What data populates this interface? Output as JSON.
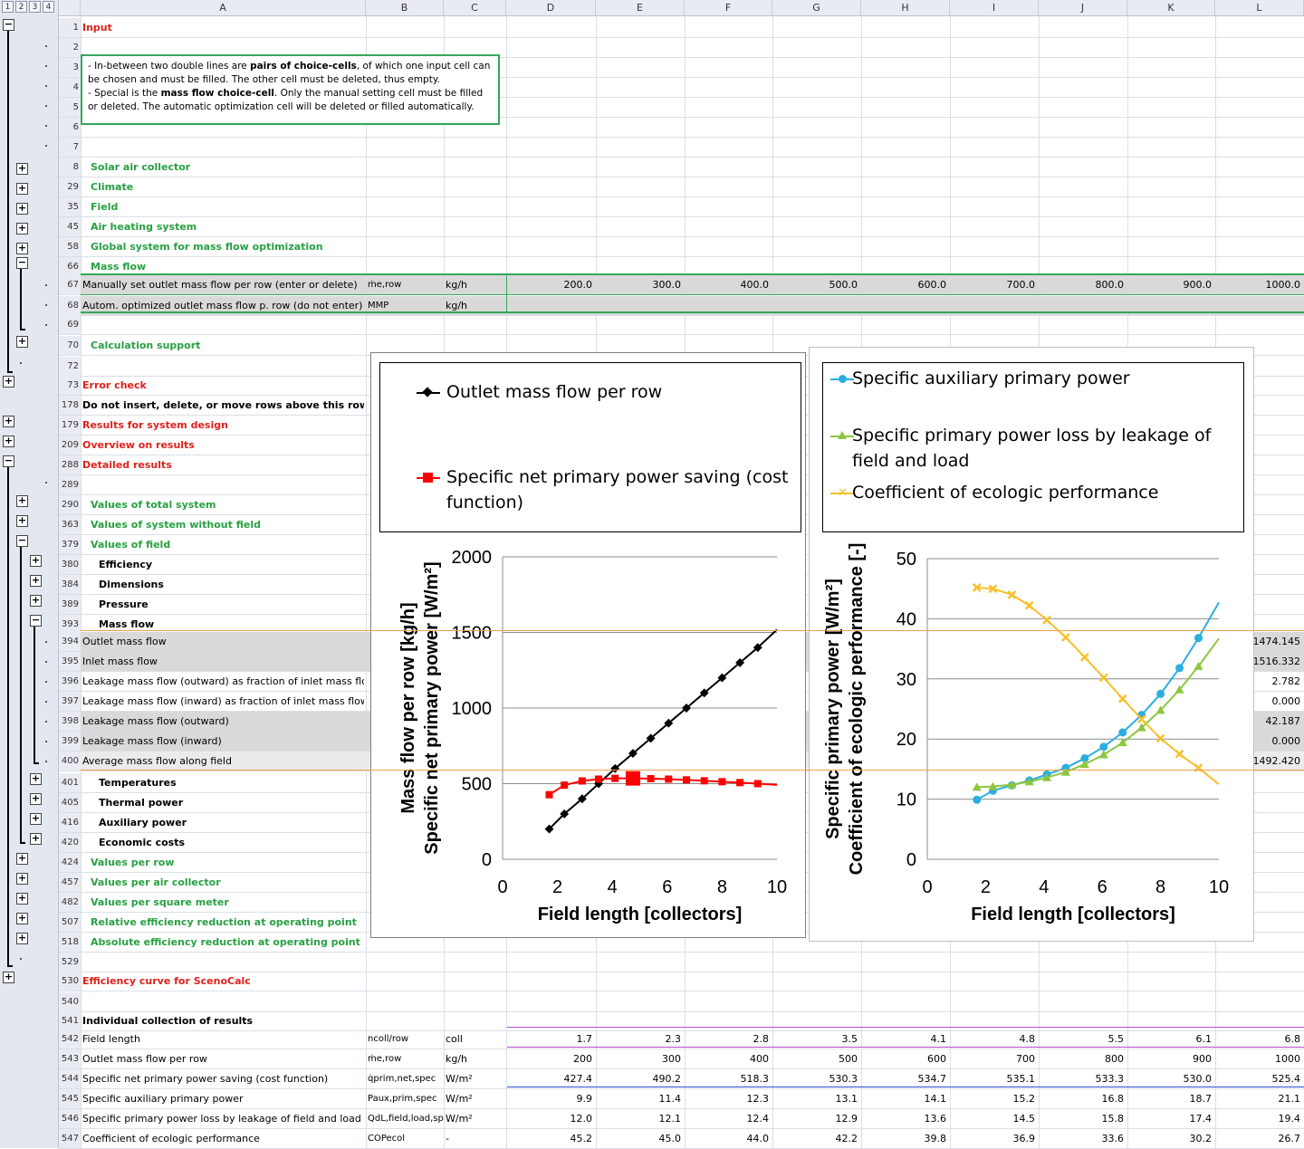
{
  "outline_levels": [
    "1",
    "2",
    "3",
    "4"
  ],
  "columns": [
    "A",
    "B",
    "C",
    "D",
    "E",
    "F",
    "G",
    "H",
    "I",
    "J",
    "K",
    "L"
  ],
  "note": {
    "l1a": "- In-between two double lines are ",
    "l1b": "pairs of choice-cells",
    "l1c": ", of which one input cell can be chosen and must be filled. The other cell must be deleted, thus empty.",
    "l2a": "- Special is the ",
    "l2b": "mass flow choice-cell",
    "l2c": ". Only the manual setting cell must be filled or deleted. The automatic optimization cell will be deleted or filled automatically."
  },
  "rows": {
    "r1": {
      "num": "1",
      "a": "Input"
    },
    "r2": {
      "num": "2"
    },
    "r3": {
      "num": "3"
    },
    "r4": {
      "num": "4"
    },
    "r5": {
      "num": "5"
    },
    "r6": {
      "num": "6"
    },
    "r7": {
      "num": "7"
    },
    "r8": {
      "num": "8",
      "a": "Solar air collector"
    },
    "r29": {
      "num": "29",
      "a": "Climate"
    },
    "r35": {
      "num": "35",
      "a": "Field"
    },
    "r45": {
      "num": "45",
      "a": "Air heating system"
    },
    "r58": {
      "num": "58",
      "a": "Global system for mass flow optimization"
    },
    "r66": {
      "num": "66",
      "a": "Mass flow"
    },
    "r67": {
      "num": "67",
      "a": "Manually set outlet mass flow per row (enter or delete)",
      "b": "ṁe,row",
      "c": "kg/h",
      "vals": [
        "200.0",
        "300.0",
        "400.0",
        "500.0",
        "600.0",
        "700.0",
        "800.0",
        "900.0",
        "1000.0"
      ]
    },
    "r68": {
      "num": "68",
      "a": "Autom. optimized outlet mass flow p. row (do not enter)",
      "b": "MMP",
      "c": "kg/h"
    },
    "r69": {
      "num": "69"
    },
    "r70": {
      "num": "70",
      "a": "Calculation support"
    },
    "r72": {
      "num": "72"
    },
    "r73": {
      "num": "73",
      "a": "Error check"
    },
    "r178": {
      "num": "178",
      "a": "Do not insert, delete, or move rows above this row!"
    },
    "r179": {
      "num": "179",
      "a": "Results for system design"
    },
    "r209": {
      "num": "209",
      "a": "Overview on results"
    },
    "r288": {
      "num": "288",
      "a": "Detailed results"
    },
    "r289": {
      "num": "289"
    },
    "r290": {
      "num": "290",
      "a": "Values of total system"
    },
    "r363": {
      "num": "363",
      "a": "Values of system without field"
    },
    "r379": {
      "num": "379",
      "a": "Values of field"
    },
    "r380": {
      "num": "380",
      "a": "Efficiency"
    },
    "r384": {
      "num": "384",
      "a": "Dimensions"
    },
    "r389": {
      "num": "389",
      "a": "Pressure"
    },
    "r393": {
      "num": "393",
      "a": "Mass flow"
    },
    "r394": {
      "num": "394",
      "a": "Outlet mass flow",
      "l": "1474.145"
    },
    "r395": {
      "num": "395",
      "a": "Inlet mass flow",
      "l": "1516.332"
    },
    "r396": {
      "num": "396",
      "a": "Leakage mass flow (outward) as fraction of inlet mass flow",
      "l": "2.782"
    },
    "r397": {
      "num": "397",
      "a": "Leakage mass flow (inward) as fraction of inlet mass flow",
      "l": "0.000"
    },
    "r398": {
      "num": "398",
      "a": "Leakage mass flow (outward)",
      "l": "42.187"
    },
    "r399": {
      "num": "399",
      "a": "Leakage mass flow (inward)",
      "l": "0.000"
    },
    "r400": {
      "num": "400",
      "a": "Average mass flow along field",
      "l": "1492.420"
    },
    "r401": {
      "num": "401",
      "a": "Temperatures"
    },
    "r405": {
      "num": "405",
      "a": "Thermal power"
    },
    "r416": {
      "num": "416",
      "a": "Auxiliary power"
    },
    "r420": {
      "num": "420",
      "a": "Economic costs"
    },
    "r424": {
      "num": "424",
      "a": "Values per row"
    },
    "r457": {
      "num": "457",
      "a": "Values per air collector"
    },
    "r482": {
      "num": "482",
      "a": "Values per square meter"
    },
    "r507": {
      "num": "507",
      "a": "Relative efficiency reduction at operating point"
    },
    "r518": {
      "num": "518",
      "a": "Absolute efficiency reduction at operating point"
    },
    "r529": {
      "num": "529"
    },
    "r530": {
      "num": "530",
      "a": "Efficiency curve for ScenoCalc"
    },
    "r540": {
      "num": "540"
    },
    "r541": {
      "num": "541",
      "a": "Individual collection of results"
    },
    "r542": {
      "num": "542",
      "a": "Field length",
      "b": "ncoll/row",
      "c": "coll",
      "vals": [
        "1.7",
        "2.3",
        "2.8",
        "3.5",
        "4.1",
        "4.8",
        "5.5",
        "6.1",
        "6.8"
      ]
    },
    "r543": {
      "num": "543",
      "a": "Outlet mass flow per row",
      "b": "ṁe,row",
      "c": "kg/h",
      "vals": [
        "200",
        "300",
        "400",
        "500",
        "600",
        "700",
        "800",
        "900",
        "1000"
      ]
    },
    "r544": {
      "num": "544",
      "a": "Specific net primary power saving (cost function)",
      "b": "q̇prim,net,spec",
      "c": "W/m²",
      "vals": [
        "427.4",
        "490.2",
        "518.3",
        "530.3",
        "534.7",
        "535.1",
        "533.3",
        "530.0",
        "525.4"
      ]
    },
    "r545": {
      "num": "545",
      "a": "Specific auxiliary primary power",
      "b": "Paux,prim,spec",
      "c": "W/m²",
      "vals": [
        "9.9",
        "11.4",
        "12.3",
        "13.1",
        "14.1",
        "15.2",
        "16.8",
        "18.7",
        "21.1"
      ]
    },
    "r546": {
      "num": "546",
      "a": "Specific primary power loss by leakage of field and load",
      "b": "QdL,field,load,spec",
      "c": "W/m²",
      "vals": [
        "12.0",
        "12.1",
        "12.4",
        "12.9",
        "13.6",
        "14.5",
        "15.8",
        "17.4",
        "19.4"
      ]
    },
    "r547": {
      "num": "547",
      "a": "Coefficient of ecologic performance",
      "b": "COPecol",
      "c": "-",
      "vals": [
        "45.2",
        "45.0",
        "44.0",
        "42.2",
        "39.8",
        "36.9",
        "33.6",
        "30.2",
        "26.7"
      ]
    }
  },
  "chart_data": [
    {
      "type": "line",
      "xlabel": "Field length [collectors]",
      "ylabel": "Mass flow per row [kg/h]\nSpecific net primary power [W/m²]",
      "xlim": [
        0,
        10
      ],
      "ylim": [
        0,
        2000
      ],
      "xticks": [
        "0",
        "2",
        "4",
        "6",
        "8",
        "10"
      ],
      "yticks": [
        "0",
        "500",
        "1000",
        "1500",
        "2000"
      ],
      "legend_position": "top",
      "series": [
        {
          "name": "Outlet mass flow per row",
          "color": "#000000",
          "marker": "diamond",
          "x": [
            1.7,
            2.25,
            2.9,
            3.5,
            4.1,
            4.75,
            5.4,
            6.05,
            6.7,
            7.35,
            8.0,
            8.65,
            9.3
          ],
          "y": [
            200,
            300,
            400,
            500,
            600,
            700,
            800,
            900,
            1000,
            1100,
            1200,
            1300,
            1400
          ]
        },
        {
          "name": "Specific net primary power saving (cost function)",
          "color": "#ff0000",
          "marker": "square",
          "x": [
            1.7,
            2.25,
            2.9,
            3.5,
            4.1,
            4.75,
            5.4,
            6.05,
            6.7,
            7.35,
            8.0,
            8.65,
            9.3
          ],
          "y": [
            427,
            490,
            518,
            530,
            535,
            535,
            533,
            530,
            525,
            519,
            513,
            507,
            500
          ],
          "highlight_index": 5
        }
      ]
    },
    {
      "type": "line",
      "xlabel": "Field length [collectors]",
      "ylabel": "Specific primary power [W/m²]\nCoefficient of ecologic performance [-]",
      "xlim": [
        0,
        10
      ],
      "ylim": [
        0,
        50
      ],
      "xticks": [
        "0",
        "2",
        "4",
        "6",
        "8",
        "10"
      ],
      "yticks": [
        "0",
        "10",
        "20",
        "30",
        "40",
        "50"
      ],
      "legend_position": "top",
      "series": [
        {
          "name": "Specific auxiliary primary power",
          "color": "#2aaee0",
          "marker": "circle",
          "x": [
            1.7,
            2.25,
            2.9,
            3.5,
            4.1,
            4.75,
            5.4,
            6.05,
            6.7,
            7.35,
            8.0,
            8.65,
            9.3
          ],
          "y": [
            9.9,
            11.4,
            12.3,
            13.1,
            14.1,
            15.2,
            16.8,
            18.7,
            21.1,
            24.0,
            27.5,
            31.8,
            36.8
          ]
        },
        {
          "name": "Specific primary power loss by leakage of field and load",
          "color": "#8cc63f",
          "marker": "triangle",
          "x": [
            1.7,
            2.25,
            2.9,
            3.5,
            4.1,
            4.75,
            5.4,
            6.05,
            6.7,
            7.35,
            8.0,
            8.65,
            9.3
          ],
          "y": [
            12.0,
            12.1,
            12.4,
            12.9,
            13.6,
            14.5,
            15.8,
            17.4,
            19.4,
            21.9,
            24.8,
            28.2,
            32.1
          ]
        },
        {
          "name": "Coefficient of ecologic performance",
          "color": "#f5c02a",
          "marker": "x",
          "x": [
            1.7,
            2.25,
            2.9,
            3.5,
            4.1,
            4.75,
            5.4,
            6.05,
            6.7,
            7.35,
            8.0,
            8.65,
            9.3
          ],
          "y": [
            45.2,
            45.0,
            44.0,
            42.2,
            39.8,
            36.9,
            33.6,
            30.2,
            26.7,
            23.3,
            20.1,
            17.5,
            15.2
          ]
        }
      ]
    }
  ]
}
